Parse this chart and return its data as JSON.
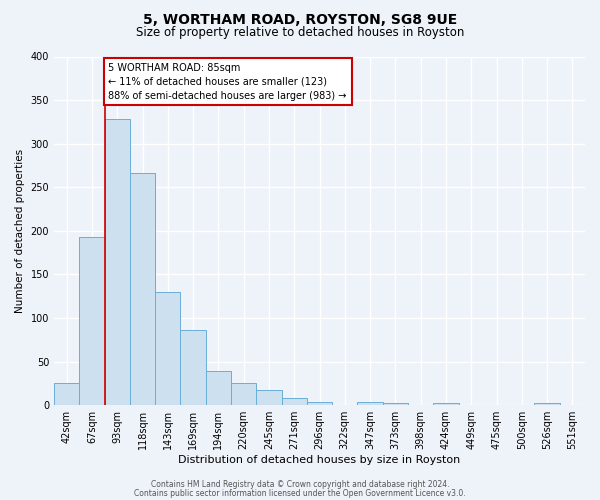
{
  "title": "5, WORTHAM ROAD, ROYSTON, SG8 9UE",
  "subtitle": "Size of property relative to detached houses in Royston",
  "xlabel": "Distribution of detached houses by size in Royston",
  "ylabel": "Number of detached properties",
  "bar_labels": [
    "42sqm",
    "67sqm",
    "93sqm",
    "118sqm",
    "143sqm",
    "169sqm",
    "194sqm",
    "220sqm",
    "245sqm",
    "271sqm",
    "296sqm",
    "322sqm",
    "347sqm",
    "373sqm",
    "398sqm",
    "424sqm",
    "449sqm",
    "475sqm",
    "500sqm",
    "526sqm",
    "551sqm"
  ],
  "bar_heights": [
    25,
    193,
    328,
    266,
    130,
    86,
    39,
    26,
    17,
    8,
    4,
    0,
    4,
    3,
    0,
    3,
    0,
    0,
    0,
    3,
    0
  ],
  "bar_color": "#cde0f0",
  "bar_edge_color": "#6aaed6",
  "vline_color": "#cc0000",
  "annotation_title": "5 WORTHAM ROAD: 85sqm",
  "annotation_line1": "← 11% of detached houses are smaller (123)",
  "annotation_line2": "88% of semi-detached houses are larger (983) →",
  "annotation_box_color": "white",
  "annotation_box_edge": "#cc0000",
  "ylim": [
    0,
    400
  ],
  "yticks": [
    0,
    50,
    100,
    150,
    200,
    250,
    300,
    350,
    400
  ],
  "footer_line1": "Contains HM Land Registry data © Crown copyright and database right 2024.",
  "footer_line2": "Contains public sector information licensed under the Open Government Licence v3.0.",
  "bg_color": "#eef2f9",
  "grid_color": "white",
  "title_fontsize": 10,
  "subtitle_fontsize": 8.5,
  "xlabel_fontsize": 8,
  "ylabel_fontsize": 7.5,
  "tick_fontsize": 7,
  "annot_fontsize": 7,
  "footer_fontsize": 5.5
}
